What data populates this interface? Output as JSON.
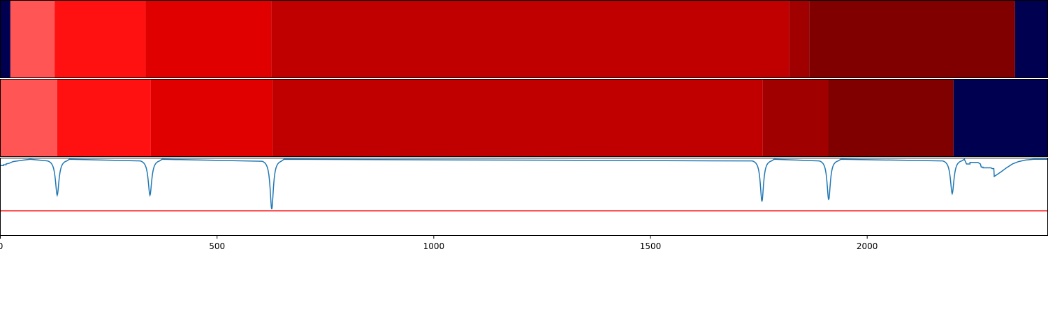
{
  "chart_data": {
    "type": "segmentation-timeline",
    "xlim": [
      0,
      2418
    ],
    "x_ticks": [
      {
        "value": 0,
        "label": "0"
      },
      {
        "value": 500,
        "label": "500"
      },
      {
        "value": 1000,
        "label": "1000"
      },
      {
        "value": 1500,
        "label": "1500"
      },
      {
        "value": 2000,
        "label": "2000"
      }
    ],
    "rows": [
      {
        "segments": [
          {
            "start": 0,
            "end": 24,
            "color": "#000050"
          },
          {
            "start": 24,
            "end": 126,
            "color": "#ff5555"
          },
          {
            "start": 126,
            "end": 336,
            "color": "#ff1111"
          },
          {
            "start": 336,
            "end": 626,
            "color": "#e00000"
          },
          {
            "start": 626,
            "end": 1821,
            "color": "#c00000"
          },
          {
            "start": 1821,
            "end": 1867,
            "color": "#a00000"
          },
          {
            "start": 1867,
            "end": 2342,
            "color": "#800000"
          },
          {
            "start": 2342,
            "end": 2418,
            "color": "#000050"
          }
        ]
      },
      {
        "segments": [
          {
            "start": 0,
            "end": 132,
            "color": "#ff5555"
          },
          {
            "start": 132,
            "end": 348,
            "color": "#ff1111"
          },
          {
            "start": 348,
            "end": 629,
            "color": "#e00000"
          },
          {
            "start": 629,
            "end": 1760,
            "color": "#c00000"
          },
          {
            "start": 1760,
            "end": 1911,
            "color": "#a00000"
          },
          {
            "start": 1911,
            "end": 2200,
            "color": "#800000"
          },
          {
            "start": 2200,
            "end": 2418,
            "color": "#000050"
          }
        ]
      }
    ],
    "signal": {
      "color": "#1f77b4",
      "ylim": [
        0,
        1
      ],
      "baseline": 0.98,
      "start_points": [
        [
          0,
          0.9
        ],
        [
          8,
          0.9
        ],
        [
          8,
          0.91
        ],
        [
          14,
          0.91
        ],
        [
          14,
          0.92
        ],
        [
          22,
          0.93
        ],
        [
          30,
          0.95
        ],
        [
          42,
          0.96
        ],
        [
          55,
          0.97
        ],
        [
          70,
          0.98
        ]
      ],
      "dips": [
        {
          "x": 132,
          "depth": 0.52,
          "width": 12
        },
        {
          "x": 346,
          "depth": 0.52,
          "width": 12
        },
        {
          "x": 627,
          "depth": 0.34,
          "width": 11
        },
        {
          "x": 1758,
          "depth": 0.44,
          "width": 11
        },
        {
          "x": 1912,
          "depth": 0.46,
          "width": 11
        },
        {
          "x": 2197,
          "depth": 0.54,
          "width": 12
        }
      ],
      "end_points": [
        [
          2230,
          0.92
        ],
        [
          2238,
          0.92
        ],
        [
          2238,
          0.94
        ],
        [
          2256,
          0.94
        ],
        [
          2262,
          0.92
        ],
        [
          2264,
          0.88
        ],
        [
          2268,
          0.88
        ],
        [
          2268,
          0.87
        ],
        [
          2286,
          0.87
        ],
        [
          2290,
          0.86
        ],
        [
          2293,
          0.86
        ],
        [
          2294,
          0.76
        ],
        [
          2302,
          0.79
        ],
        [
          2310,
          0.82
        ],
        [
          2322,
          0.87
        ],
        [
          2336,
          0.92
        ],
        [
          2350,
          0.95
        ],
        [
          2366,
          0.97
        ],
        [
          2385,
          0.98
        ],
        [
          2418,
          0.98
        ]
      ]
    },
    "threshold": {
      "value": 0.32,
      "color": "#ff0000"
    }
  }
}
